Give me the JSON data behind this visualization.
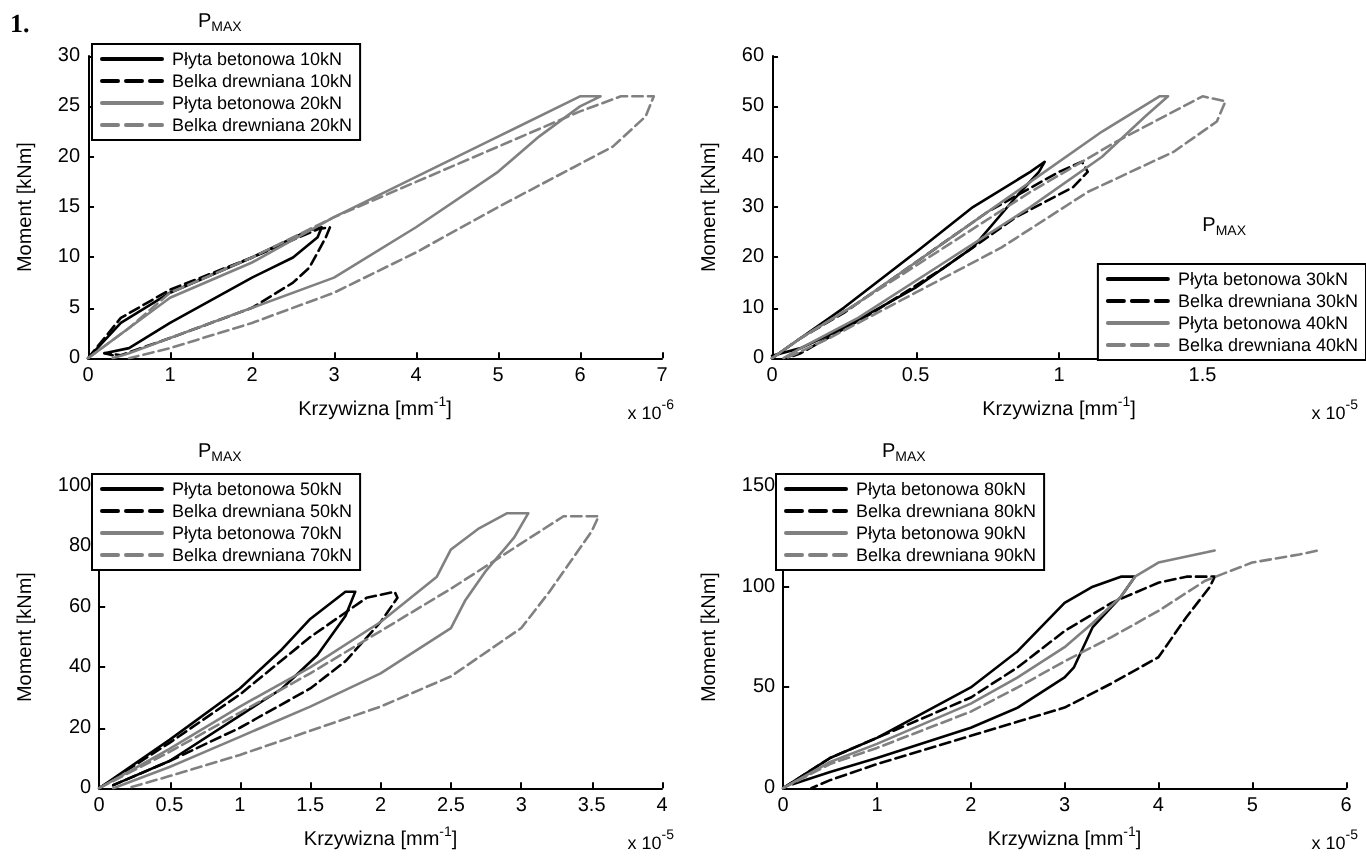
{
  "chart_data": [
    {
      "type": "line",
      "title": "1.",
      "legend_title": "P$_{MAX}$",
      "xlabel": "Krzywizna [mm$^{-1}$]",
      "ylabel": "Moment [kNm]",
      "annotations": [
        "x 10$^{-6}$"
      ],
      "legend": "top left",
      "grid": false,
      "marker": "none",
      "xlim": [
        0,
        7
      ],
      "xticks": [
        0,
        1,
        2,
        3,
        4,
        5,
        6,
        7
      ],
      "ylim": [
        0,
        30
      ],
      "yticks": [
        0,
        5,
        10,
        15,
        20,
        25,
        30
      ],
      "series": [
        {
          "name": "Płyta betonowa 10kN",
          "color": "#000000",
          "line_style": "solid",
          "x": [
            0,
            0.4,
            1,
            2,
            2.7,
            2.85,
            2.8,
            2.5,
            2,
            1,
            0.5,
            0.2,
            0.3
          ],
          "values": [
            0,
            3.5,
            6.5,
            10,
            12.7,
            13,
            12,
            10,
            8,
            3.5,
            1,
            0.5,
            0.3
          ]
        },
        {
          "name": "Belka drewniana 10kN",
          "color": "#000000",
          "line_style": "dashed",
          "x": [
            0,
            0.4,
            1,
            2,
            2.8,
            2.95,
            2.9,
            2.7,
            2.5,
            2,
            1,
            0.4,
            0.2
          ],
          "values": [
            0,
            4,
            6.8,
            10,
            12.8,
            13,
            12,
            9,
            7.5,
            5,
            2,
            0.3,
            0.5
          ]
        },
        {
          "name": "Płyta betonowa 20kN",
          "color": "#808080",
          "line_style": "solid",
          "x": [
            0,
            0.5,
            1,
            2,
            3,
            4,
            5,
            6,
            6.25,
            6,
            5.5,
            5,
            4,
            3,
            2,
            1,
            0.5,
            0.3
          ],
          "values": [
            0,
            3,
            6,
            9.5,
            14,
            18,
            22,
            26,
            26,
            25,
            22,
            18.5,
            13,
            8,
            5,
            2,
            0.5,
            0
          ]
        },
        {
          "name": "Belka drewniana 20kN",
          "color": "#808080",
          "line_style": "dashed",
          "x": [
            0,
            0.5,
            1,
            2,
            3,
            4,
            5,
            6,
            6.5,
            6.9,
            6.8,
            6.4,
            5,
            4,
            3,
            2,
            1,
            0.5
          ],
          "values": [
            0,
            3,
            6.5,
            10,
            14,
            17.5,
            21,
            24.5,
            26,
            26,
            24,
            21,
            15,
            10.5,
            6.5,
            3.5,
            1,
            0
          ]
        }
      ]
    },
    {
      "type": "line",
      "legend_title": "P$_{MAX}$",
      "xlabel": "Krzywizna [mm$^{-1}$]",
      "ylabel": "Moment [kNm]",
      "annotations": [
        "x 10$^{-5}$"
      ],
      "legend": "bottom right",
      "grid": false,
      "marker": "none",
      "xlim": [
        0,
        2
      ],
      "xticks": [
        0,
        0.5,
        1,
        1.5
      ],
      "ylim": [
        0,
        60
      ],
      "yticks": [
        0,
        10,
        20,
        30,
        40,
        50,
        60
      ],
      "series": [
        {
          "name": "Płyta betonowa 30kN",
          "color": "#000000",
          "line_style": "solid",
          "x": [
            0,
            0.1,
            0.25,
            0.5,
            0.7,
            0.9,
            0.95,
            0.93,
            0.85,
            0.7,
            0.5,
            0.25,
            0.1,
            0
          ],
          "values": [
            0,
            4,
            10,
            21,
            30,
            37,
            39,
            37,
            32,
            22,
            14,
            6,
            2,
            0.5
          ]
        },
        {
          "name": "Belka drewniana 30kN",
          "color": "#000000",
          "line_style": "dashed",
          "x": [
            0,
            0.1,
            0.25,
            0.5,
            0.75,
            1,
            1.08,
            1.1,
            1.05,
            0.85,
            0.6,
            0.35,
            0.1,
            0.05
          ],
          "values": [
            0,
            4,
            9,
            19,
            29,
            37,
            39,
            37,
            34,
            28,
            18,
            9,
            1,
            0
          ]
        },
        {
          "name": "Płyta betonowa 40kN",
          "color": "#808080",
          "line_style": "solid",
          "x": [
            0,
            0.1,
            0.3,
            0.6,
            0.9,
            1.15,
            1.35,
            1.38,
            1.3,
            1.15,
            0.9,
            0.6,
            0.3,
            0.1,
            0.04
          ],
          "values": [
            0,
            4,
            11,
            23,
            35,
            45,
            52,
            52,
            48,
            40,
            30,
            19,
            8,
            2,
            0
          ]
        },
        {
          "name": "Belka drewniana 40kN",
          "color": "#808080",
          "line_style": "dashed",
          "x": [
            0,
            0.1,
            0.3,
            0.6,
            0.9,
            1.2,
            1.5,
            1.58,
            1.55,
            1.4,
            1.1,
            0.8,
            0.5,
            0.2,
            0.05
          ],
          "values": [
            0,
            4,
            11,
            22,
            33,
            43,
            52,
            51,
            47,
            41,
            33,
            22,
            13,
            4,
            0
          ]
        }
      ]
    },
    {
      "type": "line",
      "legend_title": "P$_{MAX}$",
      "xlabel": "Krzywizna [mm$^{-1}$]",
      "ylabel": "Moment [kNm]",
      "annotations": [
        "x 10$^{-5}$"
      ],
      "legend": "top left",
      "grid": false,
      "marker": "none",
      "xlim": [
        0,
        4
      ],
      "xticks": [
        0,
        0.5,
        1,
        1.5,
        2,
        2.5,
        3,
        3.5,
        4
      ],
      "ylim": [
        0,
        100
      ],
      "yticks": [
        0,
        20,
        40,
        60,
        80,
        100
      ],
      "series": [
        {
          "name": "Płyta betonowa 50kN",
          "color": "#000000",
          "line_style": "solid",
          "x": [
            0,
            0.5,
            1,
            1.3,
            1.5,
            1.75,
            1.82,
            1.75,
            1.55,
            1.3,
            1,
            0.5,
            0.1
          ],
          "values": [
            0,
            16,
            33,
            46,
            56,
            65,
            65,
            57,
            44,
            33,
            24,
            9,
            1
          ]
        },
        {
          "name": "Belka drewniana 50kN",
          "color": "#000000",
          "line_style": "dashed",
          "x": [
            0,
            0.5,
            1,
            1.5,
            1.9,
            2.1,
            2.12,
            2,
            1.75,
            1.5,
            1,
            0.5,
            0.1
          ],
          "values": [
            0,
            15,
            31,
            50,
            63,
            65,
            63,
            55,
            42,
            33,
            20,
            9,
            1
          ]
        },
        {
          "name": "Płyta betonowa 70kN",
          "color": "#808080",
          "line_style": "solid",
          "x": [
            0,
            0.5,
            1,
            1.5,
            2,
            2.4,
            2.5,
            2.7,
            2.9,
            3.05,
            2.95,
            2.75,
            2.6,
            2.5,
            2,
            1.5,
            1,
            0.5,
            0.1
          ],
          "values": [
            0,
            13,
            27,
            40,
            55,
            70,
            79,
            86,
            91,
            91,
            83,
            72,
            62,
            53,
            38,
            27,
            17,
            7,
            0
          ]
        },
        {
          "name": "Belka drewniana 70kN",
          "color": "#808080",
          "line_style": "dashed",
          "x": [
            0,
            0.5,
            1,
            1.5,
            2,
            2.5,
            3,
            3.3,
            3.55,
            3.5,
            3.2,
            3,
            2.5,
            2,
            1.5,
            1,
            0.5,
            0.2
          ],
          "values": [
            0,
            12,
            25,
            38,
            52,
            66,
            81,
            90,
            90,
            85,
            65,
            53,
            37,
            27,
            19,
            11,
            4,
            0
          ]
        }
      ]
    },
    {
      "type": "line",
      "legend_title": "P$_{MAX}$",
      "xlabel": "Krzywizna [mm$^{-1}$]",
      "ylabel": "Moment [kNm]",
      "annotations": [
        "x 10$^{-5}$"
      ],
      "legend": "top left",
      "grid": false,
      "marker": "none",
      "xlim": [
        0,
        6
      ],
      "xticks": [
        0,
        1,
        2,
        3,
        4,
        5,
        6
      ],
      "ylim": [
        0,
        150
      ],
      "yticks": [
        0,
        50,
        100,
        150
      ],
      "series": [
        {
          "name": "Płyta betonowa 80kN",
          "color": "#000000",
          "line_style": "solid",
          "x": [
            0,
            0.5,
            1,
            2,
            2.5,
            3,
            3.3,
            3.6,
            3.75,
            3.6,
            3.3,
            3.1,
            3,
            2.5,
            2,
            1,
            0.5,
            0.1
          ],
          "values": [
            0,
            15,
            25,
            50,
            68,
            92,
            100,
            105,
            105,
            95,
            80,
            60,
            55,
            40,
            30,
            15,
            8,
            2
          ]
        },
        {
          "name": "Belka drewniana 80kN",
          "color": "#000000",
          "line_style": "dashed",
          "x": [
            0,
            0.5,
            1,
            2,
            2.5,
            3,
            3.5,
            4,
            4.3,
            4.6,
            4.55,
            4.3,
            4,
            3.5,
            3,
            2,
            1,
            0.5,
            0.3
          ],
          "values": [
            0,
            15,
            25,
            45,
            60,
            78,
            92,
            102,
            105,
            105,
            100,
            85,
            65,
            52,
            40,
            26,
            12,
            4,
            0
          ]
        },
        {
          "name": "Płyta betonowa 90kN",
          "color": "#808080",
          "line_style": "solid",
          "x": [
            0,
            0.5,
            1,
            2,
            2.5,
            3,
            3.3,
            3.6,
            3.75,
            4,
            4.5,
            4.6
          ],
          "values": [
            0,
            13,
            22,
            42,
            55,
            70,
            82,
            95,
            105,
            112,
            117,
            118
          ]
        },
        {
          "name": "Belka drewniana 90kN",
          "color": "#808080",
          "line_style": "dashed",
          "x": [
            0,
            0.5,
            1,
            2,
            2.5,
            3,
            3.5,
            4,
            4.5,
            5,
            5.5,
            5.7
          ],
          "values": [
            0,
            12,
            20,
            38,
            50,
            63,
            75,
            88,
            103,
            112,
            116,
            118
          ]
        }
      ]
    }
  ]
}
